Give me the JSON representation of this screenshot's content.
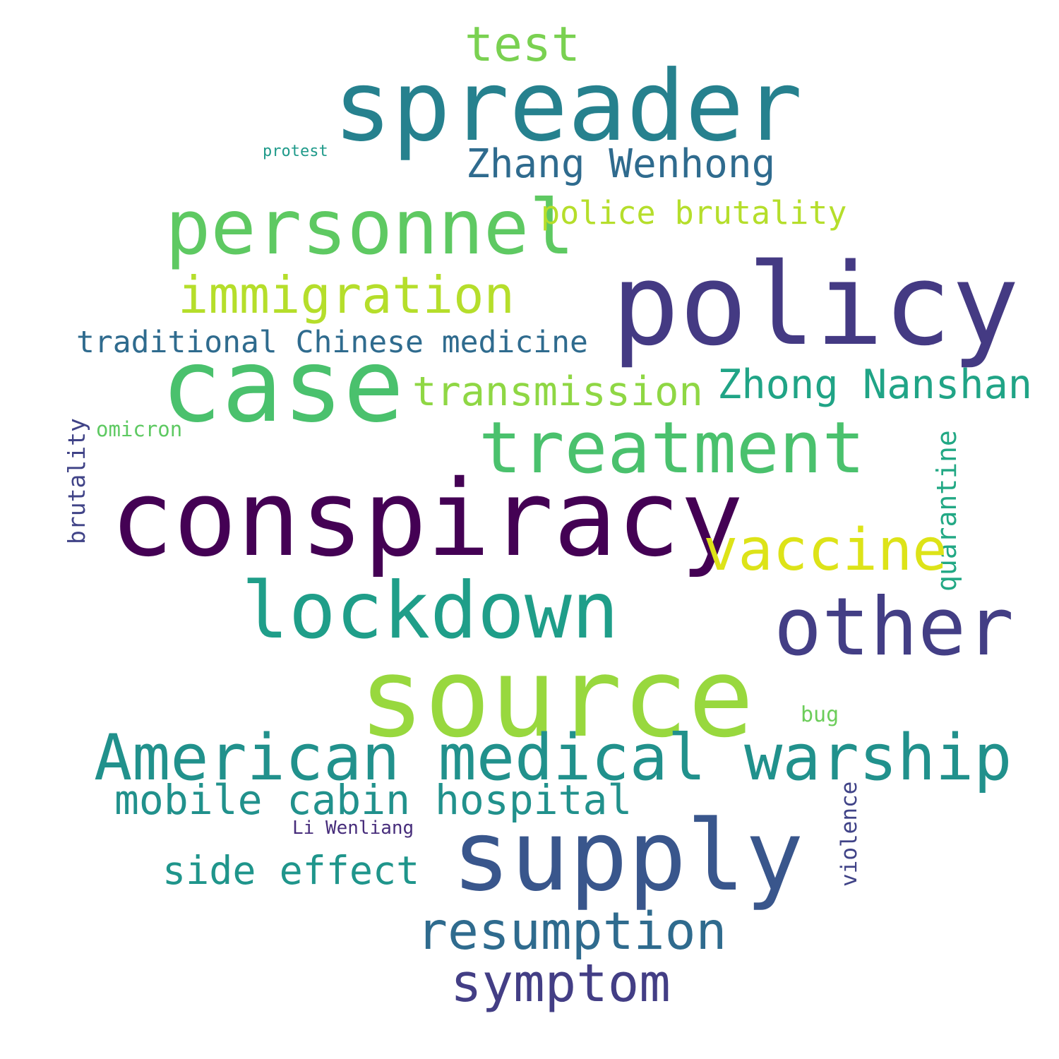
{
  "words": {
    "spreader": {
      "text": "spreader",
      "color": "#26818e"
    },
    "test": {
      "text": "test",
      "color": "#7ad151"
    },
    "protest": {
      "text": "protest",
      "color": "#1f9a8a"
    },
    "zhang": {
      "text": "Zhang Wenhong",
      "color": "#2f6b8e"
    },
    "personnel": {
      "text": "personnel",
      "color": "#5ec962"
    },
    "police": {
      "text": "police brutality",
      "color": "#b5de2b"
    },
    "immigration": {
      "text": "immigration",
      "color": "#b5de2b"
    },
    "policy": {
      "text": "policy",
      "color": "#443a83"
    },
    "tcm": {
      "text": "traditional Chinese medicine",
      "color": "#2f6b8e"
    },
    "case": {
      "text": "case",
      "color": "#4ac16d"
    },
    "transmission": {
      "text": "transmission",
      "color": "#8fd744"
    },
    "zhong": {
      "text": "Zhong Nanshan",
      "color": "#20a486"
    },
    "omicron": {
      "text": "omicron",
      "color": "#5ec962"
    },
    "treatment": {
      "text": "treatment",
      "color": "#4ac16d"
    },
    "brutality": {
      "text": "brutality",
      "color": "#404387"
    },
    "quarantine": {
      "text": "quarantine",
      "color": "#22a884"
    },
    "conspiracy": {
      "text": "conspiracy",
      "color": "#440154"
    },
    "vaccine": {
      "text": "vaccine",
      "color": "#dde318"
    },
    "lockdown": {
      "text": "lockdown",
      "color": "#1f9e89"
    },
    "other": {
      "text": "other",
      "color": "#433e85"
    },
    "source": {
      "text": "source",
      "color": "#98d83e"
    },
    "bug": {
      "text": "bug",
      "color": "#6ccd5a"
    },
    "warship": {
      "text": "American medical warship",
      "color": "#21918c"
    },
    "mobile": {
      "text": "mobile cabin hospital",
      "color": "#21918c"
    },
    "liwen": {
      "text": "Li Wenliang",
      "color": "#472d7b"
    },
    "supply": {
      "text": "supply",
      "color": "#39568c"
    },
    "violence": {
      "text": "violence",
      "color": "#404387"
    },
    "side": {
      "text": "side effect",
      "color": "#1f958b"
    },
    "resumption": {
      "text": "resumption",
      "color": "#2f6b8e"
    },
    "symptom": {
      "text": "symptom",
      "color": "#433e85"
    }
  }
}
